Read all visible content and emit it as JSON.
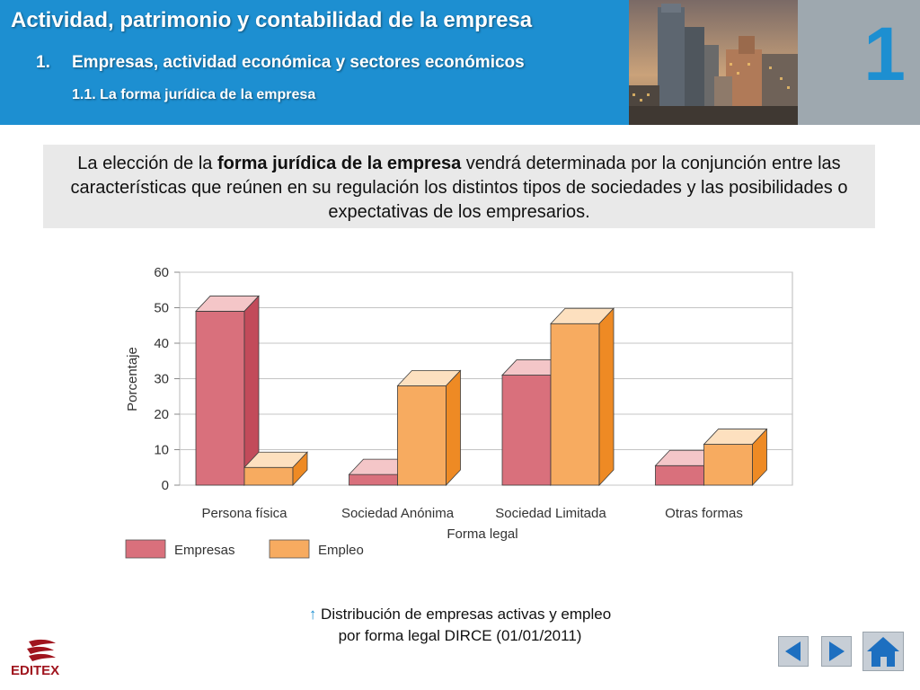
{
  "header": {
    "title": "Actividad, patrimonio y contabilidad de la empresa",
    "section_number": "1.",
    "section_title": "Empresas, actividad económica y sectores económicos",
    "subsection": "1.1. La forma jurídica de la empresa",
    "unit_number": "1"
  },
  "intro": {
    "before": "La elección de la ",
    "bold": "forma jurídica de la empresa",
    "after": " vendrá determinada por la conjunción entre las características que reúnen en su regulación los distintos tipos de sociedades y las posibilidades o expectativas de los empresarios."
  },
  "chart_data": {
    "type": "bar",
    "categories": [
      "Persona física",
      "Sociedad Anónima",
      "Sociedad Limitada",
      "Otras formas"
    ],
    "series": [
      {
        "name": "Empresas",
        "values": [
          49,
          3,
          31,
          5.5
        ]
      },
      {
        "name": "Empleo",
        "values": [
          5,
          28,
          45.5,
          11.5
        ]
      }
    ],
    "xlabel": "Forma legal",
    "ylabel": "Porcentaje",
    "ylim": [
      0,
      60
    ],
    "yticks": [
      0,
      10,
      20,
      30,
      40,
      50,
      60
    ],
    "grid": true,
    "legend": "bottom-left",
    "colors": {
      "Empresas": {
        "front": "#d9707c",
        "top": "#f4c6c8",
        "side": "#c24b5a"
      },
      "Empleo": {
        "front": "#f7ab60",
        "top": "#fde0bf",
        "side": "#ee8a24"
      }
    }
  },
  "caption": {
    "arrow": "↑",
    "line1": " Distribución de empresas activas y empleo",
    "line2": "por forma legal DIRCE (01/01/2011)"
  },
  "logo": {
    "text": "EDITEX"
  },
  "nav": {
    "prev": "previous-arrow",
    "next": "next-arrow",
    "home": "home-icon"
  }
}
